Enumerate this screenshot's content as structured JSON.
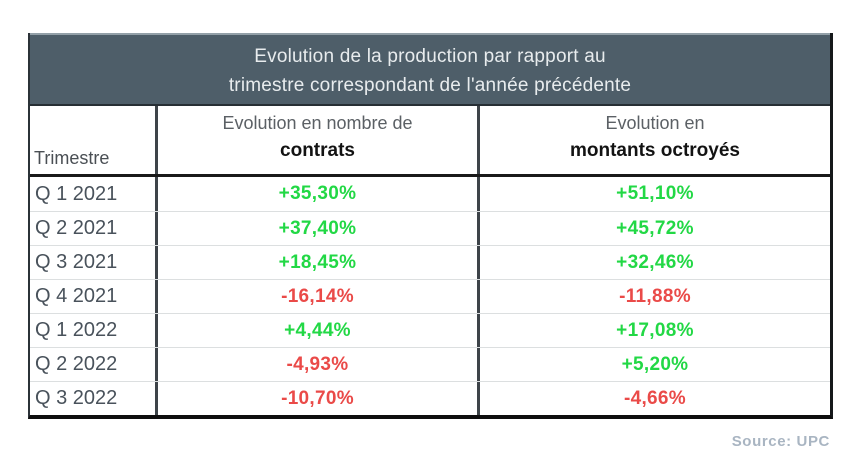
{
  "table": {
    "title_line1": "Evolution de la production par rapport au",
    "title_line2": "trimestre correspondant de l'année précédente",
    "columns": [
      {
        "label": "Trimestre"
      },
      {
        "label_top": "Evolution en nombre de",
        "label_bold": "contrats"
      },
      {
        "label_top": "Evolution en",
        "label_bold": "montants octroyés"
      }
    ],
    "rows": [
      {
        "trimestre": "Q 1 2021",
        "contrats": "+35,30%",
        "montants": "+51,10%"
      },
      {
        "trimestre": "Q 2 2021",
        "contrats": "+37,40%",
        "montants": "+45,72%"
      },
      {
        "trimestre": "Q 3 2021",
        "contrats": "+18,45%",
        "montants": "+32,46%"
      },
      {
        "trimestre": "Q 4 2021",
        "contrats": "-16,14%",
        "montants": "-11,88%"
      },
      {
        "trimestre": "Q 1 2022",
        "contrats": "+4,44%",
        "montants": "+17,08%"
      },
      {
        "trimestre": "Q 2 2022",
        "contrats": "-4,93%",
        "montants": "+5,20%"
      },
      {
        "trimestre": "Q 3 2022",
        "contrats": "-10,70%",
        "montants": "-4,66%"
      }
    ]
  },
  "source_label": "Source: UPC",
  "colors": {
    "header_bg": "#4e5e69",
    "header_text": "#e8ecee",
    "positive": "#22d845",
    "negative": "#ea4a48",
    "quarter_label_text": "#49525b",
    "subheader_gray": "#5b6065",
    "subheader_bold": "#131313",
    "source_text": "#a9b5c2",
    "border_dark": "#191919",
    "row_divider": "#dcdfe0"
  },
  "chart_data": {
    "type": "table",
    "title": "Evolution de la production par rapport au trimestre correspondant de l'année précédente",
    "columns": [
      "Trimestre",
      "Evolution en nombre de contrats",
      "Evolution en montants octroyés"
    ],
    "rows": [
      [
        "Q 1 2021",
        "+35,30%",
        "+51,10%"
      ],
      [
        "Q 2 2021",
        "+37,40%",
        "+45,72%"
      ],
      [
        "Q 3 2021",
        "+18,45%",
        "+32,46%"
      ],
      [
        "Q 4 2021",
        "-16,14%",
        "-11,88%"
      ],
      [
        "Q 1 2022",
        "+4,44%",
        "+17,08%"
      ],
      [
        "Q 2 2022",
        "-4,93%",
        "+5,20%"
      ],
      [
        "Q 3 2022",
        "-10,70%",
        "-4,66%"
      ]
    ],
    "values_numeric": {
      "contrats_pct": [
        35.3,
        37.4,
        18.45,
        -16.14,
        4.44,
        -4.93,
        -10.7
      ],
      "montants_pct": [
        51.1,
        45.72,
        32.46,
        -11.88,
        17.08,
        5.2,
        -4.66
      ]
    },
    "color_coding": "positive values green, negative values red",
    "source": "Source: UPC"
  }
}
